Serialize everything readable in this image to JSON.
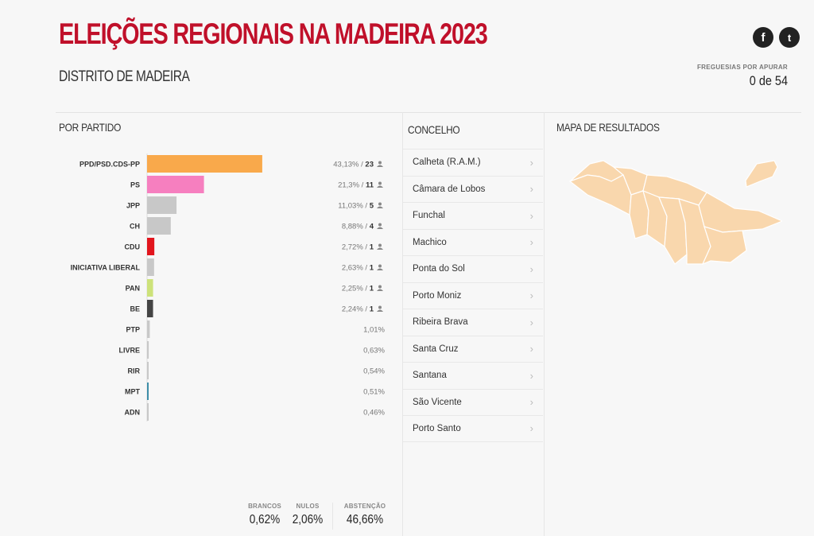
{
  "header": {
    "title": "ELEIÇÕES REGIONAIS NA MADEIRA 2023",
    "district": "DISTRITO DE MADEIRA",
    "pending_label": "FREGUESIAS POR APURAR",
    "pending_value": "0 de 54",
    "social": {
      "facebook": "f",
      "twitter": "t"
    }
  },
  "sections": {
    "by_party": "POR PARTIDO",
    "concelho": "CONCELHO",
    "map": "MAPA DE RESULTADOS"
  },
  "chart_data": {
    "type": "bar",
    "orientation": "horizontal",
    "title": "POR PARTIDO",
    "categories": [
      "PPD/PSD.CDS-PP",
      "PS",
      "JPP",
      "CH",
      "CDU",
      "INICIATIVA LIBERAL",
      "PAN",
      "BE",
      "PTP",
      "LIVRE",
      "RIR",
      "MPT",
      "ADN"
    ],
    "values": [
      43.13,
      21.3,
      11.03,
      8.88,
      2.72,
      2.63,
      2.25,
      2.24,
      1.01,
      0.63,
      0.54,
      0.51,
      0.46
    ],
    "labels": [
      "43,13%",
      "21,3%",
      "11,03%",
      "8,88%",
      "2,72%",
      "2,63%",
      "2,25%",
      "2,24%",
      "1,01%",
      "0,63%",
      "0,54%",
      "0,51%",
      "0,46%"
    ],
    "seats": [
      23,
      11,
      5,
      4,
      1,
      1,
      1,
      1,
      null,
      null,
      null,
      null,
      null
    ],
    "colors": [
      "#f9a94b",
      "#f67fbf",
      "#c8c8c8",
      "#c8c8c8",
      "#e2151d",
      "#c8c8c8",
      "#cde27a",
      "#444444",
      "#c8c8c8",
      "#c8c8c8",
      "#c8c8c8",
      "#3d8ea8",
      "#c8c8c8"
    ],
    "xlim": [
      0,
      100
    ]
  },
  "concelhos": [
    "Calheta (R.A.M.)",
    "Câmara de Lobos",
    "Funchal",
    "Machico",
    "Ponta do Sol",
    "Porto Moniz",
    "Ribeira Brava",
    "Santa Cruz",
    "Santana",
    "São Vicente",
    "Porto Santo"
  ],
  "totals": {
    "brancos_label": "BRANCOS",
    "brancos_value": "0,62%",
    "nulos_label": "NULOS",
    "nulos_value": "2,06%",
    "abstencao_label": "ABSTENÇÃO",
    "abstencao_value": "46,66%"
  },
  "map_color": "#f9d7ad",
  "map_stroke": "#ffffff"
}
